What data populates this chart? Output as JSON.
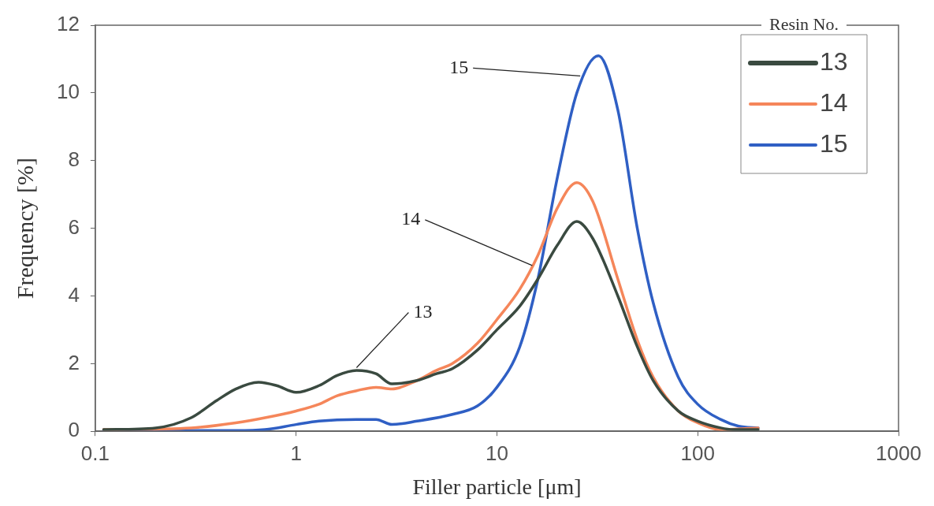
{
  "chart_data": {
    "type": "line",
    "xlabel": "Filler particle [μm]",
    "ylabel": "Frequency [%]",
    "legend_title": "Resin No.",
    "legend": "top right",
    "grid": false,
    "marker": "none",
    "line_style": "solid",
    "log": "x",
    "xlim": [
      0.1,
      1000
    ],
    "xticks": [
      0.1,
      1,
      10,
      100,
      1000
    ],
    "ylim": [
      0,
      12
    ],
    "yticks": [
      0,
      2,
      4,
      6,
      8,
      10,
      12
    ],
    "series": [
      {
        "name": "13",
        "color": "#3a4a40",
        "x": [
          0.11,
          0.2,
          0.3,
          0.4,
          0.5,
          0.65,
          0.8,
          1.0,
          1.3,
          1.6,
          2.0,
          2.5,
          3.0,
          4,
          5,
          6,
          8,
          10,
          13,
          16,
          20,
          25,
          30,
          40,
          50,
          60,
          80,
          100,
          130,
          150,
          200
        ],
        "values": [
          0.05,
          0.1,
          0.4,
          0.9,
          1.25,
          1.45,
          1.35,
          1.15,
          1.35,
          1.65,
          1.8,
          1.7,
          1.4,
          1.5,
          1.7,
          1.85,
          2.4,
          3.0,
          3.7,
          4.5,
          5.5,
          6.2,
          5.7,
          4.0,
          2.5,
          1.5,
          0.6,
          0.3,
          0.1,
          0.05,
          0.05
        ]
      },
      {
        "name": "14",
        "color": "#f5865a",
        "x": [
          0.11,
          0.3,
          0.5,
          0.7,
          1.0,
          1.3,
          1.6,
          2.0,
          2.5,
          3.0,
          4,
          5,
          6,
          8,
          10,
          13,
          16,
          20,
          25,
          30,
          40,
          50,
          60,
          80,
          100,
          130,
          200
        ],
        "values": [
          0.05,
          0.1,
          0.25,
          0.4,
          0.6,
          0.8,
          1.05,
          1.2,
          1.3,
          1.25,
          1.5,
          1.8,
          2.0,
          2.6,
          3.3,
          4.2,
          5.2,
          6.6,
          7.35,
          6.8,
          4.5,
          2.7,
          1.6,
          0.6,
          0.25,
          0.05,
          0.1
        ]
      },
      {
        "name": "15",
        "color": "#2f5fc4",
        "x": [
          0.11,
          0.5,
          0.7,
          1.0,
          1.3,
          2.0,
          2.5,
          3.0,
          4,
          6,
          8,
          10,
          13,
          16,
          20,
          25,
          32,
          40,
          50,
          60,
          80,
          100,
          130,
          160,
          200
        ],
        "values": [
          0.02,
          0.02,
          0.05,
          0.2,
          0.3,
          0.35,
          0.35,
          0.2,
          0.3,
          0.5,
          0.75,
          1.3,
          2.5,
          4.5,
          7.5,
          10.0,
          11.1,
          9.5,
          6.0,
          3.8,
          1.6,
          0.8,
          0.35,
          0.15,
          0.1
        ]
      }
    ],
    "annotations": [
      {
        "text": "15",
        "x": 26,
        "y": 10.5
      },
      {
        "text": "14",
        "x": 15,
        "y": 4.9
      },
      {
        "text": "13",
        "x": 2.0,
        "y": 1.88
      }
    ]
  }
}
